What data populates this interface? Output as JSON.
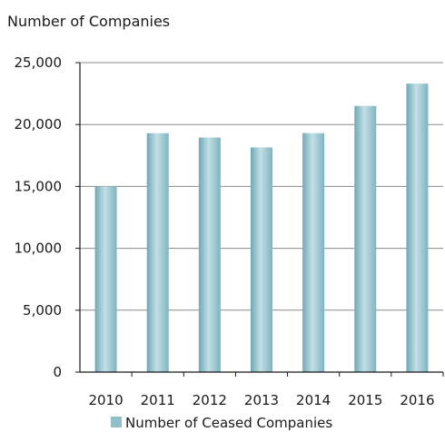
{
  "chart_data": {
    "type": "bar",
    "title": "",
    "ylabel": "Number of Companies",
    "xlabel": "",
    "categories": [
      "2010",
      "2011",
      "2012",
      "2013",
      "2014",
      "2015",
      "2016"
    ],
    "series": [
      {
        "name": "Number of Ceased Companies",
        "values": [
          15000,
          19300,
          18950,
          18150,
          19300,
          21500,
          23300
        ]
      }
    ],
    "ylim": [
      0,
      25000
    ],
    "yticks": [
      0,
      5000,
      10000,
      15000,
      20000,
      25000
    ],
    "ytick_labels": [
      "0",
      "5,000",
      "10,000",
      "15,000",
      "20,000",
      "25,000"
    ],
    "grid": true,
    "legend_position": "bottom",
    "colors": {
      "bar_mid": "#aed2da",
      "bar_edge": "#6ea8b7",
      "legend_swatch": "#8fbfcb",
      "grid": "#8a8a8a",
      "axis": "#1a1a1a"
    }
  }
}
